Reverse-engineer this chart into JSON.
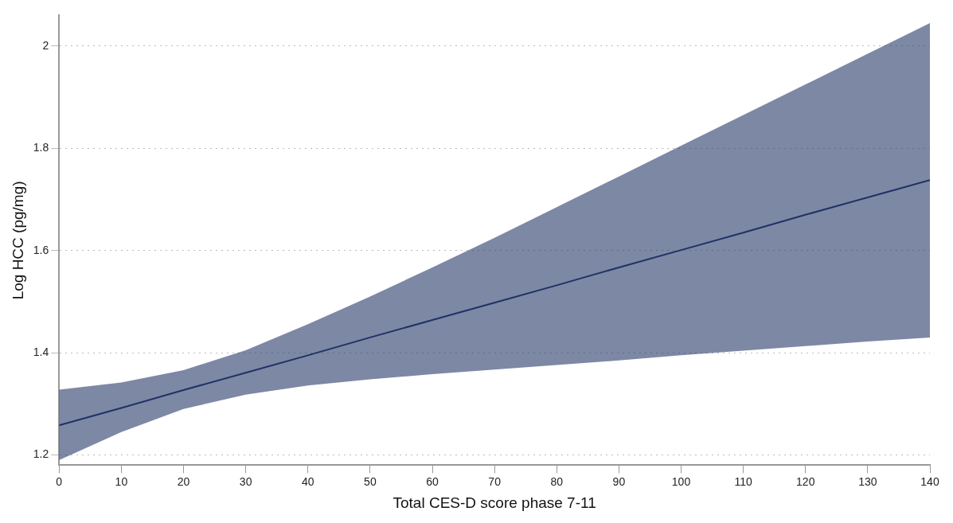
{
  "chart_data": {
    "type": "line",
    "xlabel": "Total CES-D score phase 7-11",
    "ylabel": "Log HCC (pg/mg)",
    "x": [
      0,
      10,
      20,
      30,
      40,
      50,
      60,
      70,
      80,
      90,
      100,
      110,
      120,
      130,
      140
    ],
    "series": [
      {
        "color": "#1f3264",
        "values": [
          1.258,
          1.292,
          1.327,
          1.361,
          1.395,
          1.43,
          1.464,
          1.498,
          1.532,
          1.567,
          1.601,
          1.635,
          1.67,
          1.704,
          1.738
        ],
        "lower": [
          1.19,
          1.245,
          1.29,
          1.318,
          1.336,
          1.348,
          1.358,
          1.367,
          1.376,
          1.385,
          1.395,
          1.404,
          1.413,
          1.422,
          1.43
        ],
        "upper": [
          1.328,
          1.342,
          1.366,
          1.405,
          1.456,
          1.51,
          1.567,
          1.625,
          1.685,
          1.745,
          1.805,
          1.865,
          1.925,
          1.985,
          2.045
        ]
      }
    ],
    "xlim": [
      0,
      140
    ],
    "xticks": [
      0,
      10,
      20,
      30,
      40,
      50,
      60,
      70,
      80,
      90,
      100,
      110,
      120,
      130,
      140
    ],
    "ylim": [
      1.18,
      2.06
    ],
    "yticks": [
      1.2,
      1.4,
      1.6,
      1.8,
      2
    ],
    "grid": "y",
    "legend": false,
    "marker": "none",
    "line_style": "solid"
  }
}
